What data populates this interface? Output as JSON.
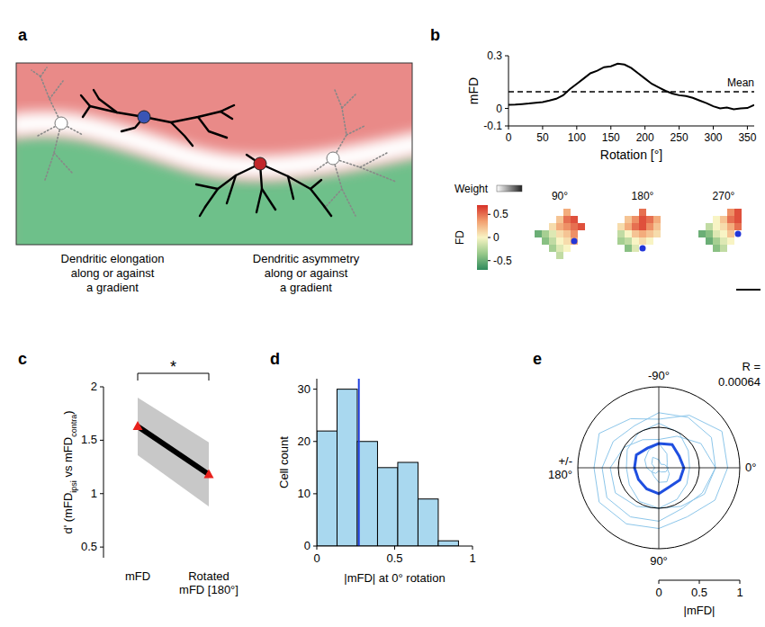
{
  "diagram": {
    "panel": "a",
    "captions": [
      [
        "Dendritic elongation",
        "along or against",
        "a gradient"
      ],
      [
        "Dendritic asymmetry",
        "along or against",
        "a gradient"
      ]
    ]
  },
  "chart_data": [
    {
      "panel": "b",
      "type": "line",
      "x": [
        0,
        10,
        20,
        30,
        40,
        50,
        60,
        70,
        80,
        90,
        100,
        110,
        120,
        130,
        140,
        150,
        160,
        170,
        180,
        190,
        200,
        210,
        220,
        230,
        240,
        250,
        260,
        270,
        280,
        290,
        300,
        310,
        320,
        330,
        340,
        350,
        360
      ],
      "values": [
        0.02,
        0.022,
        0.025,
        0.028,
        0.032,
        0.036,
        0.045,
        0.055,
        0.075,
        0.11,
        0.14,
        0.17,
        0.2,
        0.215,
        0.235,
        0.24,
        0.255,
        0.25,
        0.23,
        0.2,
        0.17,
        0.14,
        0.12,
        0.1,
        0.085,
        0.075,
        0.07,
        0.06,
        0.045,
        0.03,
        0.012,
        0,
        0.005,
        -0.005,
        0,
        0.002,
        0.02
      ],
      "xlabel": "Rotation [°]",
      "ylabel": "mFD",
      "xlim": [
        0,
        360
      ],
      "ylim": [
        -0.1,
        0.3
      ],
      "xticks": [
        0,
        50,
        100,
        150,
        200,
        250,
        300,
        350
      ],
      "yticks": [
        -0.1,
        0,
        0.3
      ],
      "color": "#000000",
      "mean": {
        "value": 0.095,
        "label": "Mean",
        "line_style": "dashed"
      }
    },
    {
      "type": "heatmap",
      "legend_title": "Weight",
      "colorbar_label": "FD",
      "colorbar_lim": [
        -0.7,
        0.7
      ],
      "colorbar_ticks": [
        0.5,
        0,
        -0.5
      ],
      "maps": [
        {
          "title": "90°",
          "cells": [
            [
              null,
              null,
              null,
              null,
              0.3,
              null,
              null
            ],
            [
              null,
              null,
              null,
              0.2,
              0.5,
              0.6,
              null
            ],
            [
              null,
              null,
              0.1,
              0.3,
              0.4,
              0.5,
              0.6
            ],
            [
              -0.5,
              -0.3,
              -0.1,
              0.1,
              0.2,
              0.4,
              null
            ],
            [
              null,
              -0.4,
              -0.2,
              0,
              0.1,
              0.3,
              null
            ],
            [
              null,
              null,
              -0.3,
              -0.1,
              0,
              null,
              null
            ],
            [
              null,
              null,
              null,
              -0.2,
              null,
              null,
              null
            ]
          ]
        },
        {
          "title": "180°",
          "cells": [
            [
              null,
              null,
              null,
              0.5,
              null,
              null,
              null
            ],
            [
              null,
              0.2,
              0.4,
              0.6,
              0.5,
              0.3,
              null
            ],
            [
              0.1,
              0.3,
              0.5,
              0.6,
              0.4,
              0.2,
              null
            ],
            [
              -0.2,
              0,
              0.2,
              0.3,
              0.2,
              0.1,
              null
            ],
            [
              -0.3,
              -0.2,
              0,
              0.1,
              0,
              null,
              null
            ],
            [
              null,
              -0.4,
              -0.1,
              null,
              null,
              null,
              null
            ],
            [
              null,
              null,
              null,
              null,
              null,
              null,
              null
            ]
          ]
        },
        {
          "title": "270°",
          "cells": [
            [
              null,
              null,
              null,
              null,
              0.4,
              0.6,
              null
            ],
            [
              null,
              null,
              0,
              0.2,
              0.5,
              0.6,
              null
            ],
            [
              null,
              -0.2,
              0,
              0.1,
              0.3,
              0.5,
              null
            ],
            [
              -0.5,
              -0.4,
              -0.1,
              0,
              0.2,
              null,
              null
            ],
            [
              null,
              -0.5,
              -0.3,
              -0.1,
              0,
              null,
              null
            ],
            [
              null,
              null,
              -0.4,
              -0.2,
              null,
              null,
              null
            ],
            [
              null,
              null,
              null,
              null,
              null,
              null,
              null
            ]
          ]
        }
      ]
    },
    {
      "panel": "c",
      "type": "line",
      "categories": [
        "mFD",
        "Rotated mFD [180°]"
      ],
      "values": [
        1.63,
        1.18
      ],
      "errors": [
        0.27,
        0.3
      ],
      "ylabel_parts": [
        "d' (mFD",
        "ipsi",
        " vs mFD",
        "contra",
        ")"
      ],
      "ylim": [
        0.4,
        2
      ],
      "yticks": [
        0.5,
        1,
        1.5,
        2
      ],
      "color": "#000000",
      "marker": "triangle",
      "annotation": "*"
    },
    {
      "panel": "d",
      "type": "histogram",
      "bins": [
        0,
        0.13,
        0.26,
        0.39,
        0.52,
        0.65,
        0.78,
        0.91
      ],
      "values": [
        22,
        30,
        20,
        15,
        16,
        9,
        1
      ],
      "xlabel": "|mFD| at 0° rotation",
      "ylabel": "Cell count",
      "xlim": [
        0,
        1
      ],
      "ylim": [
        0,
        32
      ],
      "xticks": [
        0,
        0.5,
        1
      ],
      "yticks": [
        0,
        10,
        20,
        30
      ],
      "color": "#a9d8ef",
      "median": 0.27
    },
    {
      "panel": "e",
      "type": "polar",
      "angles": [
        -180,
        -150,
        -120,
        -90,
        -60,
        -30,
        0,
        30,
        60,
        90,
        120,
        150
      ],
      "series": [
        {
          "color": "#8cc6ea",
          "values": [
            0.15,
            0.2,
            0.25,
            0.3,
            0.2,
            0.12,
            0.1,
            0.15,
            0.2,
            0.18,
            0.12,
            0.1
          ]
        },
        {
          "color": "#8cc6ea",
          "values": [
            0.6,
            0.5,
            0.4,
            0.35,
            0.45,
            0.6,
            0.7,
            0.65,
            0.55,
            0.5,
            0.55,
            0.62
          ]
        },
        {
          "color": "#8cc6ea",
          "values": [
            0.8,
            0.85,
            0.7,
            0.6,
            0.75,
            0.9,
            0.85,
            0.8,
            0.7,
            0.75,
            0.8,
            0.85
          ]
        },
        {
          "color": "#8cc6ea",
          "values": [
            0.4,
            0.45,
            0.5,
            0.55,
            0.5,
            0.42,
            0.38,
            0.4,
            0.45,
            0.5,
            0.48,
            0.42
          ]
        },
        {
          "color": "#8cc6ea",
          "values": [
            0.05,
            0.1,
            0.15,
            0.1,
            0.05,
            0.08,
            0.12,
            0.1,
            0.06,
            0.04,
            0.08,
            0.1
          ]
        },
        {
          "color": "#8cc6ea",
          "values": [
            0.7,
            0.65,
            0.6,
            0.68,
            0.72,
            0.75,
            0.7,
            0.62,
            0.58,
            0.66,
            0.7,
            0.74
          ]
        },
        {
          "color": "#1f4fe0",
          "values": [
            0.3,
            0.32,
            0.28,
            0.3,
            0.33,
            0.29,
            0.31,
            0.3,
            0.27,
            0.32,
            0.3,
            0.29
          ]
        }
      ],
      "rlabel": "|mFD|",
      "rlim": [
        0,
        1
      ],
      "rticks": [
        0,
        0.5,
        1
      ],
      "angle_ticks": [
        {
          "value": -90,
          "label": "-90°"
        },
        {
          "value": 0,
          "label": "0°"
        },
        {
          "value": 90,
          "label": "90°"
        },
        {
          "value": 180,
          "label": "+/- 180°"
        }
      ],
      "stat_label": "R =",
      "stat_value": 0.00064
    }
  ]
}
